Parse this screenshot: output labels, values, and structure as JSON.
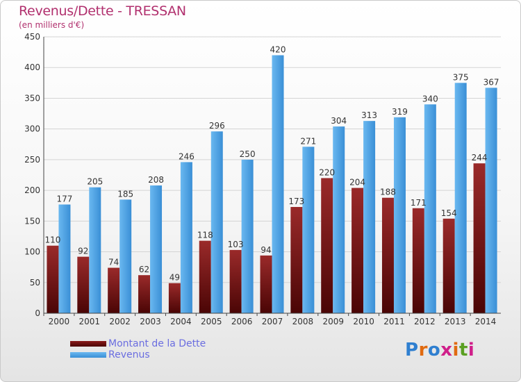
{
  "header": {
    "title": "Revenus/Dette - TRESSAN",
    "subtitle": "(en milliers d'€)"
  },
  "chart_data": {
    "type": "bar",
    "title": "Revenus/Dette - TRESSAN",
    "subtitle": "(en milliers d'€)",
    "categories": [
      "2000",
      "2001",
      "2002",
      "2003",
      "2004",
      "2005",
      "2006",
      "2007",
      "2008",
      "2009",
      "2010",
      "2011",
      "2012",
      "2013",
      "2014"
    ],
    "series": [
      {
        "name": "Montant de la Dette",
        "color": "#7a1010",
        "values": [
          110,
          92,
          74,
          62,
          49,
          118,
          103,
          94,
          173,
          220,
          204,
          188,
          171,
          154,
          244
        ]
      },
      {
        "name": "Revenus",
        "color": "#4a9fe0",
        "values": [
          177,
          205,
          185,
          208,
          246,
          296,
          250,
          420,
          271,
          304,
          313,
          319,
          340,
          375,
          367
        ]
      }
    ],
    "ylim": [
      0,
      450
    ],
    "yticks": [
      0,
      50,
      100,
      150,
      200,
      250,
      300,
      350,
      400,
      450
    ],
    "grid": true,
    "legend": "bottom-left"
  },
  "legend": {
    "items": [
      {
        "label": "Montant de la Dette",
        "color": "#6b0e0e"
      },
      {
        "label": "Revenus",
        "color": "#4aa3e6"
      }
    ]
  },
  "logo": {
    "letters": [
      "P",
      "r",
      "o",
      "x",
      "i",
      "t",
      "i"
    ],
    "colors": [
      "#2f7fd0",
      "#e06a10",
      "#2f7fd0",
      "#d01f8a",
      "#e06a10",
      "#5a9f22",
      "#d01f8a"
    ]
  }
}
